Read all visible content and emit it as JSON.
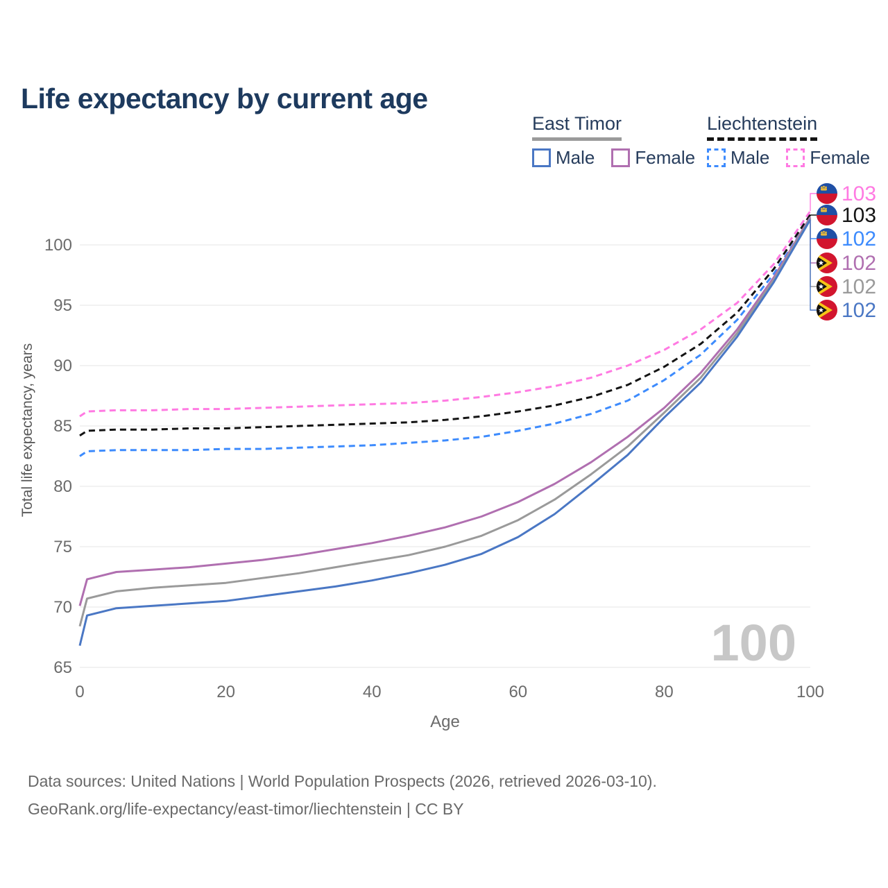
{
  "title": "Life expectancy by current age",
  "legend": {
    "groups": [
      {
        "country": "East Timor",
        "line_style": "solid",
        "underline_color": "#9a9a9a",
        "items": [
          {
            "label": "Male",
            "color": "#4a77c4"
          },
          {
            "label": "Female",
            "color": "#b06fb0"
          }
        ]
      },
      {
        "country": "Liechtenstein",
        "line_style": "dashed",
        "underline_color": "#141414",
        "items": [
          {
            "label": "Male",
            "color": "#3d8bfd"
          },
          {
            "label": "Female",
            "color": "#ff7ae2"
          }
        ]
      }
    ]
  },
  "watermark": "100",
  "footer": {
    "line1": "Data sources: United Nations | World Population Prospects (2026, retrieved 2026-03-10).",
    "line2": "GeoRank.org/life-expectancy/east-timor/liechtenstein | CC BY"
  },
  "chart_data": {
    "type": "line",
    "title": "Life expectancy by current age",
    "xlabel": "Age",
    "ylabel": "Total life expectancy, years",
    "xlim": [
      0,
      100
    ],
    "ylim": [
      65,
      104
    ],
    "x_ticks": [
      0,
      20,
      40,
      60,
      80,
      100
    ],
    "y_ticks": [
      65,
      70,
      75,
      80,
      85,
      90,
      95,
      100
    ],
    "grid": "horizontal",
    "legend_position": "top-right",
    "x": [
      0,
      1,
      5,
      10,
      15,
      20,
      25,
      30,
      35,
      40,
      45,
      50,
      55,
      60,
      65,
      70,
      75,
      80,
      85,
      90,
      95,
      100
    ],
    "series": [
      {
        "name": "Liechtenstein Female",
        "country": "Liechtenstein",
        "sex": "female",
        "color": "#ff7ae2",
        "dash": "dashed",
        "values": [
          85.8,
          86.2,
          86.3,
          86.3,
          86.4,
          86.4,
          86.5,
          86.6,
          86.7,
          86.8,
          86.9,
          87.1,
          87.4,
          87.8,
          88.3,
          89.0,
          90.0,
          91.3,
          93.0,
          95.2,
          98.4,
          102.8
        ]
      },
      {
        "name": "Liechtenstein Overall",
        "country": "Liechtenstein",
        "sex": "all",
        "color": "#141414",
        "dash": "dashed",
        "values": [
          84.2,
          84.6,
          84.7,
          84.7,
          84.8,
          84.8,
          84.9,
          85.0,
          85.1,
          85.2,
          85.3,
          85.5,
          85.8,
          86.2,
          86.7,
          87.4,
          88.4,
          89.9,
          91.8,
          94.4,
          98.0,
          102.5
        ]
      },
      {
        "name": "Liechtenstein Male",
        "country": "Liechtenstein",
        "sex": "male",
        "color": "#3d8bfd",
        "dash": "dashed",
        "values": [
          82.5,
          82.9,
          83.0,
          83.0,
          83.0,
          83.1,
          83.1,
          83.2,
          83.3,
          83.4,
          83.6,
          83.8,
          84.1,
          84.6,
          85.2,
          86.0,
          87.1,
          88.8,
          90.9,
          93.8,
          97.6,
          102.2
        ]
      },
      {
        "name": "East Timor Female",
        "country": "East Timor",
        "sex": "female",
        "color": "#b06fb0",
        "dash": "solid",
        "values": [
          70.1,
          72.3,
          72.9,
          73.1,
          73.3,
          73.6,
          73.9,
          74.3,
          74.8,
          75.3,
          75.9,
          76.6,
          77.5,
          78.7,
          80.2,
          82.0,
          84.1,
          86.5,
          89.4,
          93.0,
          97.3,
          102.3
        ]
      },
      {
        "name": "East Timor Overall",
        "country": "East Timor",
        "sex": "all",
        "color": "#9a9a9a",
        "dash": "solid",
        "values": [
          68.4,
          70.7,
          71.3,
          71.6,
          71.8,
          72.0,
          72.4,
          72.8,
          73.3,
          73.8,
          74.3,
          75.0,
          75.9,
          77.2,
          78.9,
          81.0,
          83.3,
          86.1,
          89.0,
          92.7,
          97.1,
          102.2
        ]
      },
      {
        "name": "East Timor Male",
        "country": "East Timor",
        "sex": "male",
        "color": "#4a77c4",
        "dash": "solid",
        "values": [
          66.8,
          69.3,
          69.9,
          70.1,
          70.3,
          70.5,
          70.9,
          71.3,
          71.7,
          72.2,
          72.8,
          73.5,
          74.4,
          75.8,
          77.7,
          80.1,
          82.6,
          85.7,
          88.6,
          92.4,
          96.9,
          102.1
        ]
      }
    ],
    "end_labels": [
      {
        "value": "103",
        "color": "#ff7ae2",
        "flag": "liechtenstein",
        "series": "Liechtenstein Female"
      },
      {
        "value": "103",
        "color": "#141414",
        "flag": "liechtenstein",
        "series": "Liechtenstein Overall"
      },
      {
        "value": "102",
        "color": "#3d8bfd",
        "flag": "liechtenstein",
        "series": "Liechtenstein Male"
      },
      {
        "value": "102",
        "color": "#b06fb0",
        "flag": "east-timor",
        "series": "East Timor Female"
      },
      {
        "value": "102",
        "color": "#9a9a9a",
        "flag": "east-timor",
        "series": "East Timor Overall"
      },
      {
        "value": "102",
        "color": "#4a77c4",
        "flag": "east-timor",
        "series": "East Timor Male"
      }
    ]
  }
}
